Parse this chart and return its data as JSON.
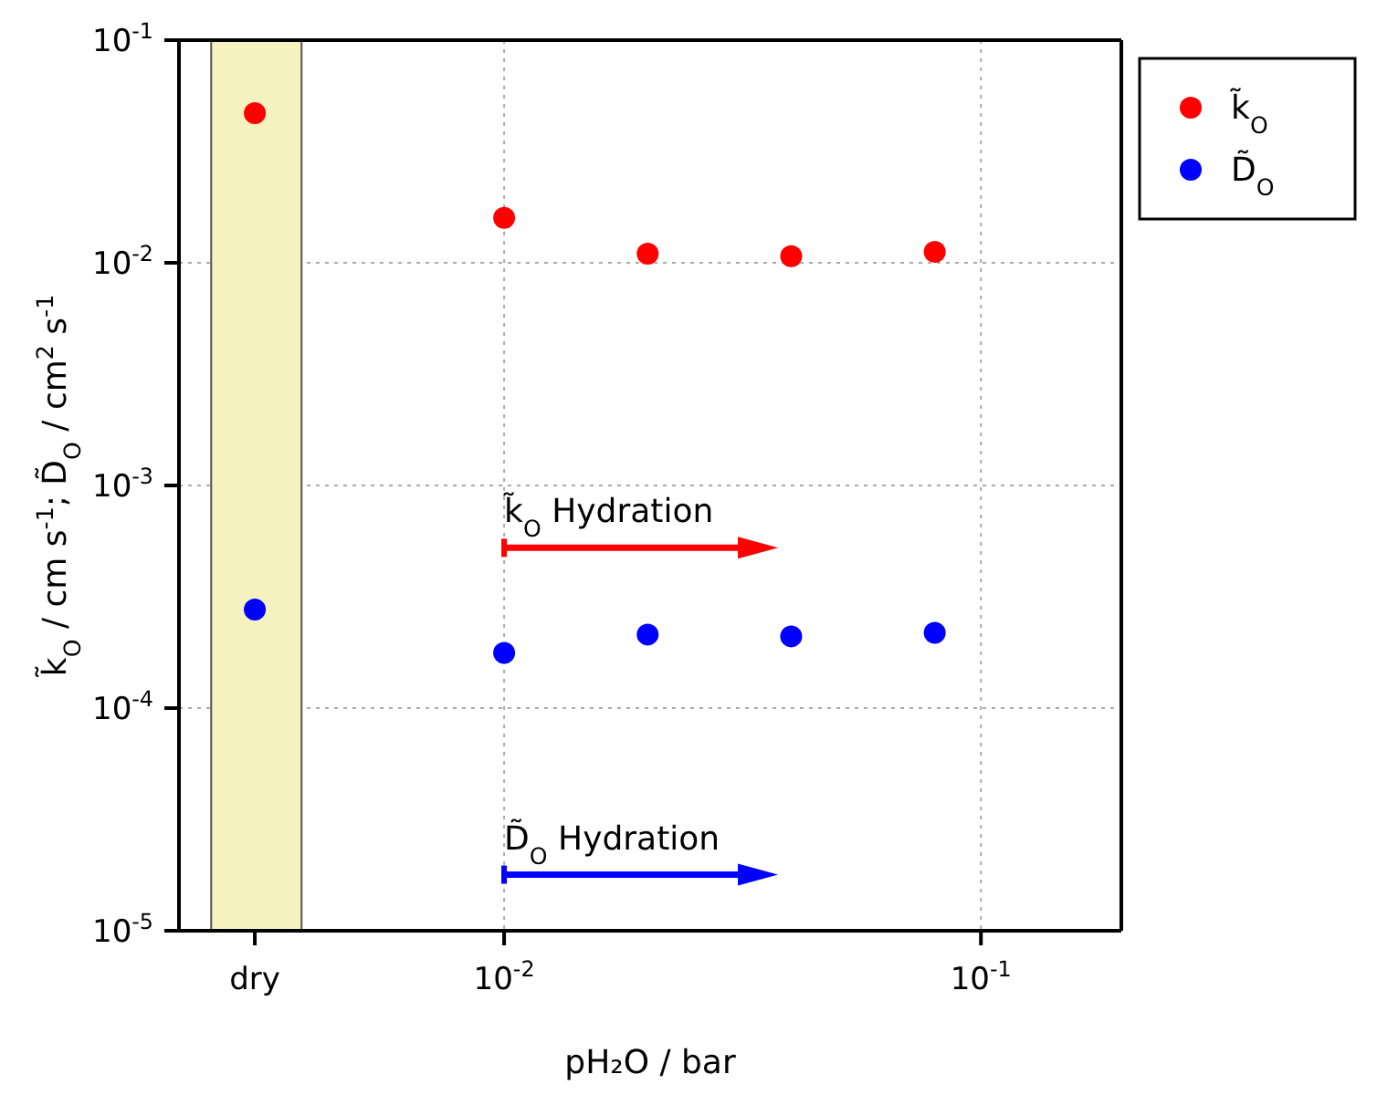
{
  "chart_data": {
    "type": "scatter",
    "xlabel": "pH₂O / bar",
    "ylabel": "k̃$_{O}$ / cm s$^{-1}$; D̃$_{O}$ / cm$^{2}$ s$^{-1}$",
    "x": [
      0.003,
      0.01,
      0.02,
      0.04,
      0.08
    ],
    "series": [
      {
        "name": "k̃$_{O}$",
        "color": "#ff0000",
        "values": [
          0.047,
          0.0159,
          0.011,
          0.0107,
          0.0112
        ]
      },
      {
        "name": "D̃$_{O}$",
        "color": "#0000ff",
        "values": [
          0.000277,
          0.000177,
          0.000214,
          0.00021,
          0.000218
        ]
      }
    ],
    "log": "xy",
    "xlim": [
      0.00208,
      0.197
    ],
    "ylim": [
      1e-05,
      0.1
    ],
    "xticks": [
      {
        "value": 0.003,
        "label": "dry"
      },
      {
        "value": 0.01,
        "label": "10$^{-2}$"
      },
      {
        "value": 0.1,
        "label": "10$^{-1}$"
      }
    ],
    "yticks": [
      {
        "value": 1e-05,
        "label": "10$^{-5}$"
      },
      {
        "value": 0.0001,
        "label": "10$^{-4}$"
      },
      {
        "value": 0.001,
        "label": "10$^{-3}$"
      },
      {
        "value": 0.01,
        "label": "10$^{-2}$"
      },
      {
        "value": 0.1,
        "label": "10$^{-1}$"
      }
    ],
    "bands": [
      {
        "axis": "x",
        "from": 0.00243,
        "to": 0.00376,
        "color": "#f5f2c0"
      }
    ],
    "annotations": [
      "k̃$_{O}$ Hydration",
      "D̃$_{O}$ Hydration"
    ],
    "grid": true,
    "legend": "top right",
    "marker": "circle"
  }
}
